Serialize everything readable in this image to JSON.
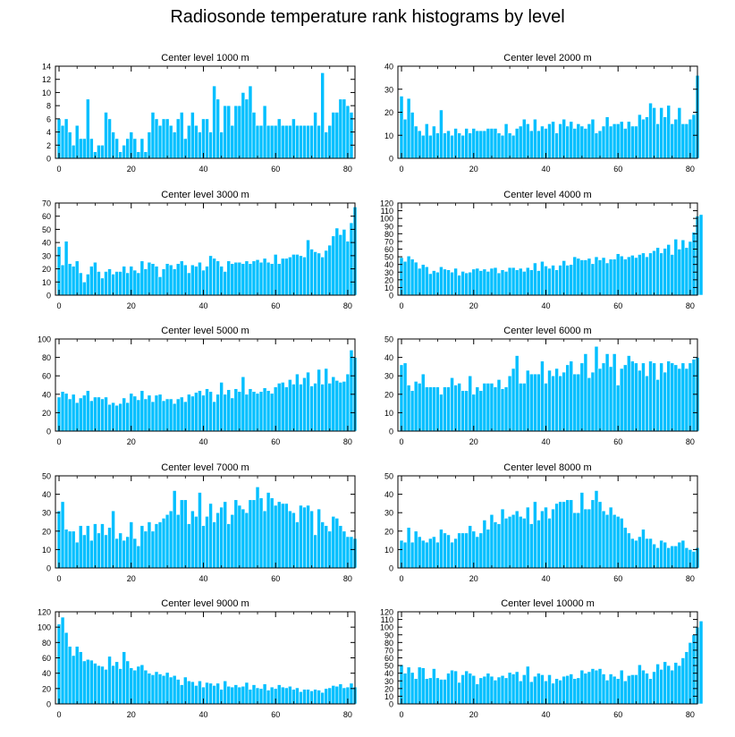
{
  "figure_title": "Radiosonde temperature rank histograms by level",
  "colors": {
    "bar": "#00BFFF",
    "bar_edge": "#ffffff",
    "axis": "#000000"
  },
  "chart_data": [
    {
      "type": "bar",
      "title": "Center level 1000 m",
      "xlabel": "",
      "ylabel": "",
      "xlim": [
        -1,
        82
      ],
      "ylim": [
        0,
        14
      ],
      "xticks": [
        0,
        20,
        40,
        60,
        80
      ],
      "yticks": [
        0,
        2,
        4,
        6,
        8,
        10,
        12,
        14
      ],
      "x_start": 0,
      "values": [
        6,
        5,
        6,
        4,
        2,
        5,
        3,
        3,
        9,
        3,
        1,
        2,
        2,
        7,
        6,
        4,
        3,
        1,
        2,
        3,
        4,
        3,
        1,
        3,
        1,
        4,
        7,
        6,
        5,
        6,
        6,
        5,
        4,
        6,
        7,
        3,
        5,
        7,
        5,
        4,
        6,
        6,
        4,
        11,
        9,
        4,
        8,
        8,
        5,
        8,
        8,
        10,
        9,
        11,
        7,
        5,
        5,
        8,
        5,
        5,
        5,
        6,
        5,
        5,
        5,
        6,
        5,
        5,
        5,
        5,
        5,
        7,
        5,
        13,
        4,
        5,
        7,
        7,
        9,
        9,
        8,
        7
      ]
    },
    {
      "type": "bar",
      "title": "Center level 2000 m",
      "xlabel": "",
      "ylabel": "",
      "xlim": [
        -1,
        82
      ],
      "ylim": [
        0,
        40
      ],
      "xticks": [
        0,
        20,
        40,
        60,
        80
      ],
      "yticks": [
        0,
        10,
        20,
        30,
        40
      ],
      "x_start": 0,
      "values": [
        27,
        17,
        26,
        20,
        14,
        12,
        10,
        15,
        10,
        14,
        11,
        21,
        11,
        12,
        10,
        13,
        11,
        10,
        13,
        11,
        13,
        12,
        12,
        12,
        13,
        13,
        13,
        11,
        10,
        15,
        11,
        10,
        13,
        14,
        17,
        15,
        12,
        17,
        12,
        14,
        13,
        15,
        16,
        11,
        15,
        17,
        14,
        16,
        13,
        15,
        14,
        13,
        15,
        17,
        11,
        12,
        14,
        18,
        14,
        15,
        15,
        16,
        13,
        16,
        14,
        14,
        19,
        17,
        18,
        24,
        22,
        15,
        22,
        18,
        23,
        15,
        17,
        22,
        15,
        15,
        17,
        19,
        36
      ]
    },
    {
      "type": "bar",
      "title": "Center level 3000 m",
      "xlabel": "",
      "ylabel": "",
      "xlim": [
        -1,
        82
      ],
      "ylim": [
        0,
        70
      ],
      "xticks": [
        0,
        20,
        40,
        60,
        80
      ],
      "yticks": [
        0,
        10,
        20,
        30,
        40,
        50,
        60,
        70
      ],
      "x_start": 0,
      "values": [
        37,
        23,
        41,
        24,
        22,
        26,
        17,
        10,
        16,
        22,
        25,
        18,
        13,
        18,
        20,
        16,
        18,
        18,
        22,
        17,
        22,
        19,
        17,
        26,
        20,
        25,
        24,
        22,
        14,
        20,
        24,
        23,
        20,
        24,
        26,
        23,
        17,
        23,
        22,
        25,
        19,
        22,
        30,
        28,
        26,
        22,
        18,
        26,
        24,
        25,
        25,
        24,
        26,
        24,
        26,
        27,
        25,
        28,
        25,
        24,
        31,
        24,
        28,
        28,
        29,
        31,
        31,
        30,
        29,
        42,
        35,
        33,
        32,
        29,
        34,
        38,
        45,
        51,
        46,
        50,
        41,
        55,
        67
      ]
    },
    {
      "type": "bar",
      "title": "Center level 4000 m",
      "xlabel": "",
      "ylabel": "",
      "xlim": [
        -1,
        82
      ],
      "ylim": [
        0,
        120
      ],
      "xticks": [
        0,
        20,
        40,
        60,
        80
      ],
      "yticks": [
        0,
        10,
        20,
        30,
        40,
        50,
        60,
        70,
        80,
        90,
        100,
        110,
        120
      ],
      "x_start": 0,
      "values": [
        49,
        44,
        51,
        47,
        43,
        35,
        40,
        37,
        28,
        32,
        30,
        37,
        34,
        33,
        30,
        35,
        26,
        31,
        29,
        30,
        34,
        35,
        32,
        34,
        31,
        35,
        36,
        29,
        33,
        31,
        36,
        36,
        33,
        35,
        31,
        36,
        33,
        42,
        32,
        44,
        38,
        35,
        39,
        33,
        39,
        45,
        39,
        40,
        50,
        48,
        46,
        46,
        48,
        41,
        50,
        46,
        49,
        42,
        47,
        47,
        54,
        51,
        47,
        50,
        52,
        49,
        53,
        55,
        50,
        55,
        58,
        62,
        55,
        61,
        66,
        53,
        73,
        60,
        72,
        62,
        70,
        82,
        103,
        105
      ]
    },
    {
      "type": "bar",
      "title": "Center level 5000 m",
      "xlabel": "",
      "ylabel": "",
      "xlim": [
        -1,
        82
      ],
      "ylim": [
        0,
        100
      ],
      "xticks": [
        0,
        20,
        40,
        60,
        80
      ],
      "yticks": [
        0,
        20,
        40,
        60,
        80,
        100
      ],
      "x_start": 0,
      "values": [
        37,
        43,
        41,
        35,
        40,
        31,
        36,
        39,
        44,
        33,
        37,
        37,
        35,
        37,
        29,
        31,
        28,
        30,
        36,
        31,
        41,
        38,
        34,
        44,
        35,
        39,
        32,
        39,
        40,
        33,
        35,
        35,
        30,
        35,
        37,
        32,
        40,
        38,
        42,
        44,
        39,
        46,
        43,
        32,
        40,
        53,
        40,
        45,
        36,
        46,
        43,
        59,
        40,
        46,
        43,
        41,
        43,
        47,
        44,
        41,
        48,
        52,
        53,
        48,
        56,
        51,
        62,
        51,
        58,
        64,
        49,
        52,
        67,
        51,
        68,
        52,
        59,
        55,
        53,
        54,
        62,
        88,
        80
      ]
    },
    {
      "type": "bar",
      "title": "Center level 6000 m",
      "xlabel": "",
      "ylabel": "",
      "xlim": [
        -1,
        82
      ],
      "ylim": [
        0,
        50
      ],
      "xticks": [
        0,
        20,
        40,
        60,
        80
      ],
      "yticks": [
        0,
        10,
        20,
        30,
        40,
        50
      ],
      "x_start": 0,
      "values": [
        36,
        37,
        25,
        22,
        27,
        26,
        31,
        24,
        24,
        24,
        24,
        20,
        24,
        24,
        29,
        25,
        26,
        22,
        22,
        30,
        20,
        24,
        22,
        26,
        26,
        26,
        24,
        28,
        23,
        24,
        30,
        34,
        41,
        26,
        26,
        33,
        31,
        31,
        31,
        38,
        26,
        33,
        30,
        34,
        30,
        32,
        36,
        38,
        31,
        31,
        37,
        42,
        29,
        32,
        46,
        34,
        37,
        42,
        35,
        42,
        25,
        34,
        36,
        41,
        38,
        37,
        33,
        37,
        30,
        38,
        37,
        28,
        37,
        32,
        38,
        37,
        36,
        34,
        37,
        34,
        37,
        39,
        40
      ]
    },
    {
      "type": "bar",
      "title": "Center level 7000 m",
      "xlabel": "",
      "ylabel": "",
      "xlim": [
        -1,
        82
      ],
      "ylim": [
        0,
        50
      ],
      "xticks": [
        0,
        20,
        40,
        60,
        80
      ],
      "yticks": [
        0,
        10,
        20,
        30,
        40,
        50
      ],
      "x_start": 0,
      "values": [
        31,
        36,
        21,
        20,
        20,
        14,
        23,
        18,
        23,
        15,
        24,
        19,
        24,
        18,
        22,
        31,
        16,
        19,
        15,
        17,
        25,
        16,
        12,
        23,
        20,
        25,
        20,
        24,
        25,
        27,
        29,
        31,
        42,
        29,
        37,
        37,
        24,
        31,
        28,
        41,
        23,
        28,
        35,
        25,
        30,
        33,
        36,
        24,
        29,
        37,
        34,
        32,
        30,
        37,
        37,
        44,
        38,
        31,
        41,
        38,
        34,
        36,
        35,
        35,
        31,
        30,
        25,
        34,
        33,
        34,
        31,
        18,
        32,
        25,
        23,
        20,
        28,
        27,
        23,
        20,
        17,
        17,
        16
      ]
    },
    {
      "type": "bar",
      "title": "Center level 8000 m",
      "xlabel": "",
      "ylabel": "",
      "xlim": [
        -1,
        82
      ],
      "ylim": [
        0,
        50
      ],
      "xticks": [
        0,
        20,
        40,
        60,
        80
      ],
      "yticks": [
        0,
        10,
        20,
        30,
        40,
        50
      ],
      "x_start": 0,
      "values": [
        15,
        14,
        22,
        14,
        20,
        17,
        15,
        14,
        16,
        17,
        14,
        21,
        19,
        18,
        14,
        16,
        19,
        19,
        19,
        23,
        20,
        17,
        19,
        26,
        21,
        29,
        25,
        24,
        32,
        27,
        28,
        29,
        31,
        28,
        27,
        33,
        24,
        36,
        26,
        31,
        33,
        27,
        32,
        35,
        36,
        36,
        37,
        37,
        30,
        30,
        41,
        32,
        32,
        37,
        42,
        36,
        31,
        29,
        33,
        29,
        28,
        27,
        22,
        19,
        16,
        15,
        17,
        21,
        16,
        16,
        13,
        11,
        15,
        14,
        11,
        12,
        12,
        14,
        15,
        11,
        10,
        9,
        11
      ]
    },
    {
      "type": "bar",
      "title": "Center level 9000 m",
      "xlabel": "",
      "ylabel": "",
      "xlim": [
        -1,
        82
      ],
      "ylim": [
        0,
        120
      ],
      "xticks": [
        0,
        20,
        40,
        60,
        80
      ],
      "yticks": [
        0,
        20,
        40,
        60,
        80,
        100,
        120
      ],
      "x_start": 0,
      "values": [
        104,
        113,
        93,
        75,
        63,
        75,
        68,
        56,
        58,
        57,
        53,
        50,
        49,
        45,
        62,
        50,
        55,
        46,
        68,
        56,
        47,
        44,
        49,
        51,
        44,
        40,
        38,
        42,
        39,
        37,
        41,
        35,
        37,
        32,
        25,
        35,
        30,
        29,
        24,
        30,
        22,
        28,
        27,
        24,
        27,
        19,
        30,
        23,
        22,
        25,
        22,
        23,
        28,
        19,
        25,
        21,
        20,
        26,
        18,
        22,
        20,
        25,
        22,
        21,
        23,
        19,
        21,
        16,
        19,
        19,
        17,
        19,
        18,
        15,
        20,
        21,
        24,
        23,
        26,
        21,
        22,
        27,
        22
      ]
    },
    {
      "type": "bar",
      "title": "Center level 10000 m",
      "xlabel": "",
      "ylabel": "",
      "xlim": [
        -1,
        82
      ],
      "ylim": [
        0,
        120
      ],
      "xticks": [
        0,
        20,
        40,
        60,
        80
      ],
      "yticks": [
        0,
        10,
        20,
        30,
        40,
        50,
        60,
        70,
        80,
        90,
        100,
        110,
        120
      ],
      "x_start": 0,
      "values": [
        51,
        40,
        48,
        41,
        33,
        48,
        47,
        33,
        34,
        46,
        34,
        32,
        32,
        40,
        44,
        43,
        28,
        38,
        43,
        40,
        37,
        26,
        34,
        36,
        40,
        36,
        31,
        35,
        37,
        34,
        41,
        39,
        42,
        30,
        38,
        49,
        29,
        36,
        40,
        38,
        30,
        38,
        27,
        33,
        31,
        36,
        37,
        39,
        33,
        34,
        44,
        40,
        42,
        46,
        44,
        46,
        39,
        31,
        39,
        36,
        33,
        44,
        30,
        37,
        38,
        38,
        51,
        44,
        40,
        33,
        42,
        52,
        45,
        55,
        50,
        44,
        54,
        50,
        60,
        68,
        80,
        90,
        100,
        108
      ]
    }
  ]
}
